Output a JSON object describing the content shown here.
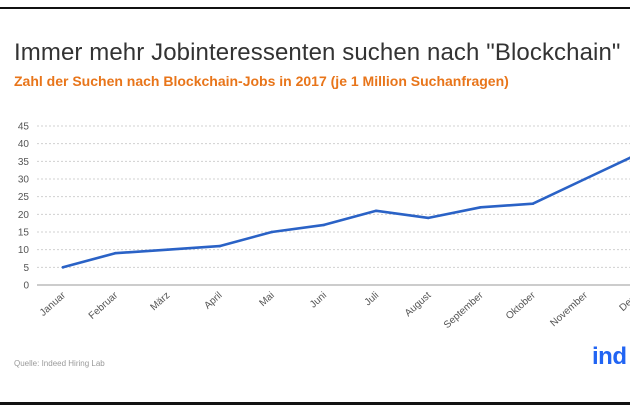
{
  "header": {
    "title": "Immer mehr Jobinteressenten suchen nach \"Blockchain\"",
    "subtitle": "Zahl der Suchen nach Blockchain-Jobs in 2017 (je 1 Million Suchanfragen)"
  },
  "footer": {
    "source": "Quelle: Indeed Hiring Lab",
    "logo_text": "ind"
  },
  "colors": {
    "line": "#2a62c6",
    "subtitle": "#e8751a",
    "grid": "#d0d0d0",
    "logo": "#2164f3"
  },
  "chart_data": {
    "type": "line",
    "title": "Immer mehr Jobinteressenten suchen nach \"Blockchain\"",
    "subtitle": "Zahl der Suchen nach Blockchain-Jobs in 2017 (je 1 Million Suchanfragen)",
    "categories": [
      "Januar",
      "Februar",
      "März",
      "April",
      "Mai",
      "Juni",
      "Juli",
      "August",
      "September",
      "Oktober",
      "November",
      "Dezember"
    ],
    "category_labels_shown": [
      "Januar",
      "Februar",
      "März",
      "April",
      "Mai",
      "Juni",
      "Juli",
      "August",
      "September",
      "Oktober",
      "November",
      "Deze"
    ],
    "series": [
      {
        "values": [
          5,
          9,
          10,
          11,
          15,
          17,
          21,
          19,
          22,
          23,
          30,
          36
        ]
      }
    ],
    "ylim": [
      0,
      45
    ],
    "yticks": [
      0,
      5,
      10,
      15,
      20,
      25,
      30,
      35,
      40,
      45
    ],
    "grid": "horizontal dashed",
    "legend": "none"
  }
}
